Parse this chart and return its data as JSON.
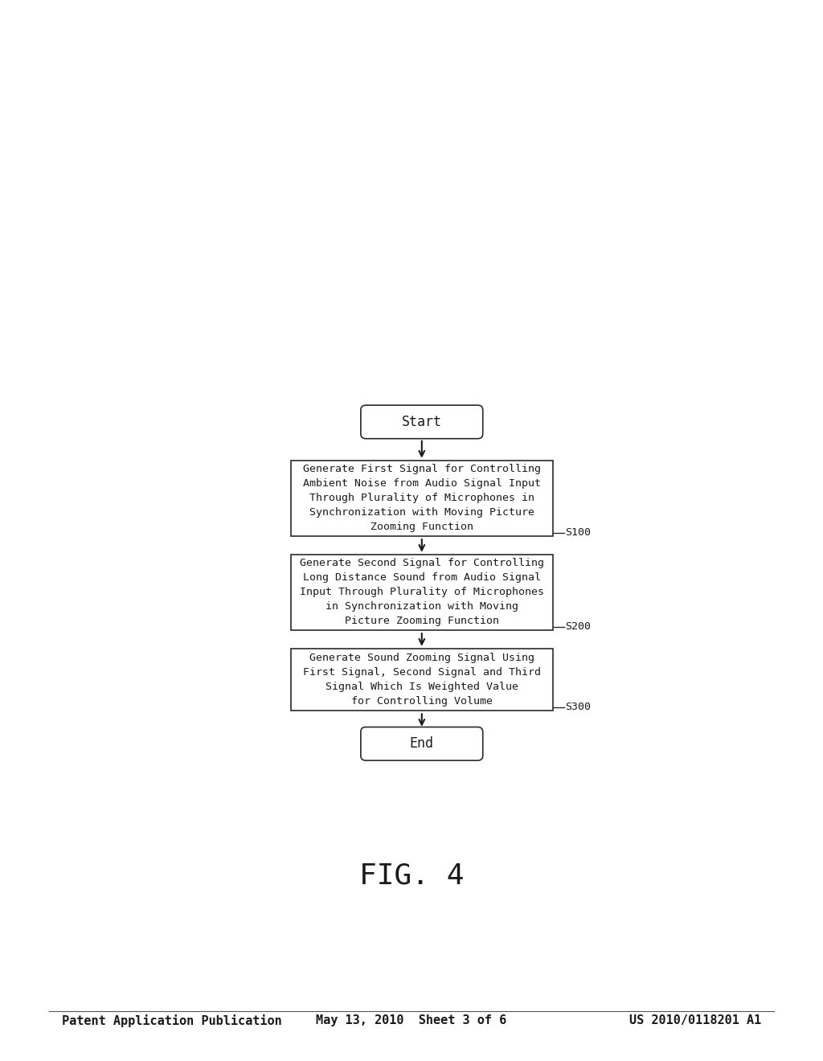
{
  "background_color": "#ffffff",
  "fig_title": "FIG. 4",
  "fig_title_fontsize": 26,
  "header_left": "Patent Application Publication",
  "header_center": "May 13, 2010  Sheet 3 of 6",
  "header_right": "US 2010/0118201 A1",
  "header_fontsize": 11,
  "start_label": "Start",
  "end_label": "End",
  "box1_lines": [
    "Generate First Signal for Controlling",
    "Ambient Noise from Audio Signal Input",
    "Through Plurality of Microphones in",
    "Synchronization with Moving Picture",
    "Zooming Function"
  ],
  "box1_label": "S100",
  "box2_lines": [
    "Generate Second Signal for Controlling",
    "Long Distance Sound from Audio Signal",
    "Input Through Plurality of Microphones",
    "in Synchronization with Moving",
    "Picture Zooming Function"
  ],
  "box2_label": "S200",
  "box3_lines": [
    "Generate Sound Zooming Signal Using",
    "First Signal, Second Signal and Third",
    "Signal Which Is Weighted Value",
    "for Controlling Volume"
  ],
  "box3_label": "S300",
  "text_color": "#1a1a1a",
  "box_edge_color": "#2a2a2a",
  "arrow_color": "#1a1a1a",
  "font_family": "monospace"
}
